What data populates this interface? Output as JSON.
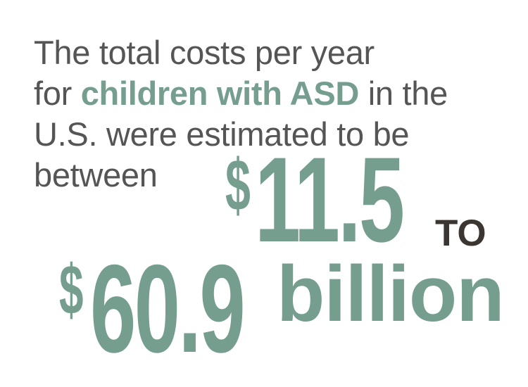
{
  "intro": {
    "line1": "The total costs per year",
    "line2_pre": "for ",
    "line2_highlight": "children with ASD",
    "line2_post": " in the",
    "line3": "U.S. were estimated to be",
    "line4": "between"
  },
  "range": {
    "currency_symbol": "$",
    "low": "11.5",
    "connector": "TO",
    "high": "60.9",
    "unit": "billion"
  },
  "colors": {
    "accent": "#759e8f",
    "text": "#555555",
    "connector": "#3b3632"
  }
}
